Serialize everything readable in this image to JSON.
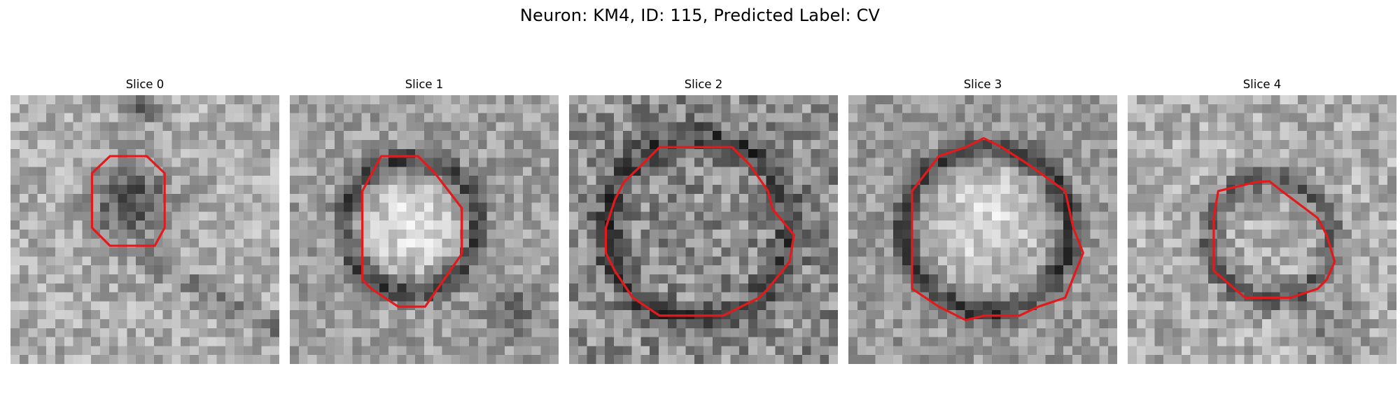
{
  "figure": {
    "title": "Neuron: KM4, ID: 115, Predicted Label: CV"
  },
  "slices": [
    {
      "title": "Slice 0",
      "contour_color": "#e31a1c",
      "shape": "dark-blob"
    },
    {
      "title": "Slice 1",
      "contour_color": "#e31a1c",
      "shape": "bright-vesicle"
    },
    {
      "title": "Slice 2",
      "contour_color": "#e31a1c",
      "shape": "large-ring"
    },
    {
      "title": "Slice 3",
      "contour_color": "#e31a1c",
      "shape": "bright-vesicle-ring"
    },
    {
      "title": "Slice 4",
      "contour_color": "#e31a1c",
      "shape": "small-ring"
    }
  ]
}
